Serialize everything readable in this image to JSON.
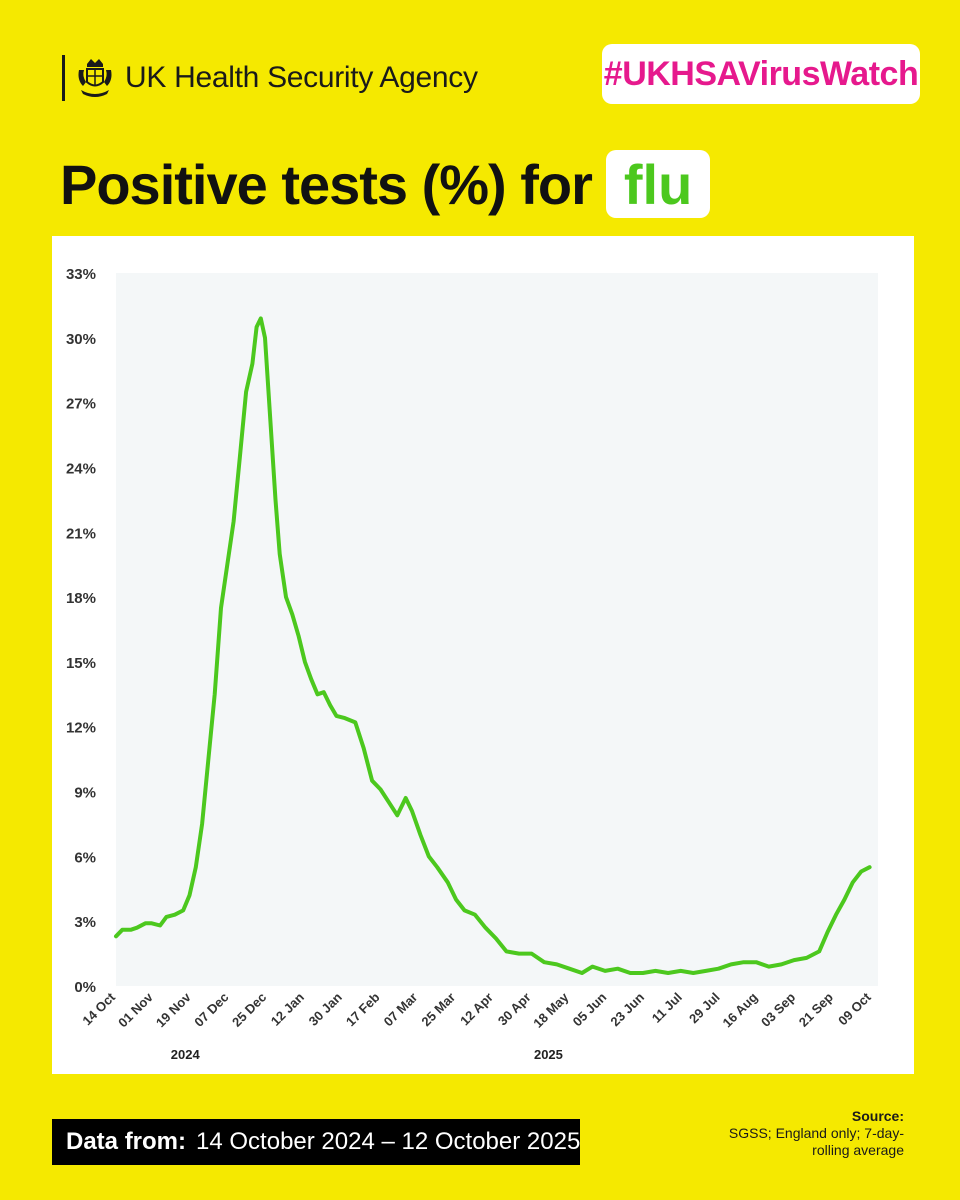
{
  "header": {
    "agency_name": "UK Health Security Agency",
    "hashtag": "#UKHSAVirusWatch"
  },
  "title": {
    "main": "Positive tests (%) for",
    "highlight": "flu"
  },
  "colors": {
    "background": "#f5e900",
    "line": "#4cc81e",
    "hashtag": "#e6198d",
    "plot_bg": "#f4f7f8"
  },
  "chart_data": {
    "type": "line",
    "y_unit": "%",
    "ylim": [
      0,
      33
    ],
    "yticks": [
      "0%",
      "3%",
      "6%",
      "9%",
      "12%",
      "15%",
      "18%",
      "21%",
      "24%",
      "27%",
      "30%",
      "33%"
    ],
    "xlim": [
      "2024-10-14",
      "2025-10-12"
    ],
    "x_tick_labels": [
      "14 Oct",
      "01 Nov",
      "19 Nov",
      "07 Dec",
      "25 Dec",
      "12 Jan",
      "30 Jan",
      "17 Feb",
      "07 Mar",
      "25 Mar",
      "12 Apr",
      "30 Apr",
      "18 May",
      "05 Jun",
      "23 Jun",
      "11 Jul",
      "29 Jul",
      "16 Aug",
      "03 Sep",
      "21 Sep",
      "09 Oct"
    ],
    "x_tick_dates": [
      "2024-10-14",
      "2024-11-01",
      "2024-11-19",
      "2024-12-07",
      "2024-12-25",
      "2025-01-12",
      "2025-01-30",
      "2025-02-17",
      "2025-03-07",
      "2025-03-25",
      "2025-04-12",
      "2025-04-30",
      "2025-05-18",
      "2025-06-05",
      "2025-06-23",
      "2025-07-11",
      "2025-07-29",
      "2025-08-16",
      "2025-09-03",
      "2025-09-21",
      "2025-10-09"
    ],
    "year_labels": [
      {
        "label": "2024",
        "date": "2024-11-16"
      },
      {
        "label": "2025",
        "date": "2025-05-08"
      }
    ],
    "grid": false,
    "series": [
      {
        "values": [
          [
            "2024-10-14",
            2.3
          ],
          [
            "2024-10-17",
            2.6
          ],
          [
            "2024-10-21",
            2.6
          ],
          [
            "2024-10-24",
            2.7
          ],
          [
            "2024-10-28",
            2.9
          ],
          [
            "2024-10-31",
            2.9
          ],
          [
            "2024-11-04",
            2.8
          ],
          [
            "2024-11-07",
            3.2
          ],
          [
            "2024-11-11",
            3.3
          ],
          [
            "2024-11-15",
            3.5
          ],
          [
            "2024-11-18",
            4.2
          ],
          [
            "2024-11-21",
            5.5
          ],
          [
            "2024-11-24",
            7.5
          ],
          [
            "2024-11-27",
            10.5
          ],
          [
            "2024-11-30",
            13.5
          ],
          [
            "2024-12-03",
            17.5
          ],
          [
            "2024-12-06",
            19.5
          ],
          [
            "2024-12-09",
            21.5
          ],
          [
            "2024-12-12",
            24.5
          ],
          [
            "2024-12-15",
            27.5
          ],
          [
            "2024-12-18",
            28.8
          ],
          [
            "2024-12-20",
            30.5
          ],
          [
            "2024-12-22",
            30.9
          ],
          [
            "2024-12-24",
            30.0
          ],
          [
            "2024-12-26",
            27.0
          ],
          [
            "2024-12-29",
            22.5
          ],
          [
            "2024-12-31",
            20.0
          ],
          [
            "2025-01-03",
            18.0
          ],
          [
            "2025-01-06",
            17.2
          ],
          [
            "2025-01-09",
            16.2
          ],
          [
            "2025-01-12",
            15.0
          ],
          [
            "2025-01-15",
            14.2
          ],
          [
            "2025-01-18",
            13.5
          ],
          [
            "2025-01-21",
            13.6
          ],
          [
            "2025-01-24",
            13.0
          ],
          [
            "2025-01-27",
            12.5
          ],
          [
            "2025-01-31",
            12.4
          ],
          [
            "2025-02-05",
            12.2
          ],
          [
            "2025-02-09",
            11.0
          ],
          [
            "2025-02-13",
            9.5
          ],
          [
            "2025-02-17",
            9.1
          ],
          [
            "2025-02-21",
            8.5
          ],
          [
            "2025-02-25",
            7.9
          ],
          [
            "2025-03-01",
            8.7
          ],
          [
            "2025-03-04",
            8.1
          ],
          [
            "2025-03-08",
            7.0
          ],
          [
            "2025-03-12",
            6.0
          ],
          [
            "2025-03-16",
            5.5
          ],
          [
            "2025-03-21",
            4.8
          ],
          [
            "2025-03-25",
            4.0
          ],
          [
            "2025-03-29",
            3.5
          ],
          [
            "2025-04-03",
            3.3
          ],
          [
            "2025-04-08",
            2.7
          ],
          [
            "2025-04-13",
            2.2
          ],
          [
            "2025-04-18",
            1.6
          ],
          [
            "2025-04-24",
            1.5
          ],
          [
            "2025-04-30",
            1.5
          ],
          [
            "2025-05-06",
            1.1
          ],
          [
            "2025-05-12",
            1.0
          ],
          [
            "2025-05-18",
            0.8
          ],
          [
            "2025-05-24",
            0.6
          ],
          [
            "2025-05-29",
            0.9
          ],
          [
            "2025-06-04",
            0.7
          ],
          [
            "2025-06-10",
            0.8
          ],
          [
            "2025-06-16",
            0.6
          ],
          [
            "2025-06-22",
            0.6
          ],
          [
            "2025-06-28",
            0.7
          ],
          [
            "2025-07-04",
            0.6
          ],
          [
            "2025-07-10",
            0.7
          ],
          [
            "2025-07-16",
            0.6
          ],
          [
            "2025-07-22",
            0.7
          ],
          [
            "2025-07-28",
            0.8
          ],
          [
            "2025-08-03",
            1.0
          ],
          [
            "2025-08-09",
            1.1
          ],
          [
            "2025-08-15",
            1.1
          ],
          [
            "2025-08-21",
            0.9
          ],
          [
            "2025-08-27",
            1.0
          ],
          [
            "2025-09-02",
            1.2
          ],
          [
            "2025-09-08",
            1.3
          ],
          [
            "2025-09-14",
            1.6
          ],
          [
            "2025-09-18",
            2.5
          ],
          [
            "2025-09-22",
            3.3
          ],
          [
            "2025-09-26",
            4.0
          ],
          [
            "2025-09-30",
            4.8
          ],
          [
            "2025-10-04",
            5.3
          ],
          [
            "2025-10-08",
            5.5
          ]
        ]
      }
    ]
  },
  "footer": {
    "label": "Data from:",
    "range": "14 October 2024 – 12 October 2025",
    "source_title": "Source:",
    "source_lines": [
      "SGSS; England only; 7-day-",
      "rolling average"
    ]
  }
}
